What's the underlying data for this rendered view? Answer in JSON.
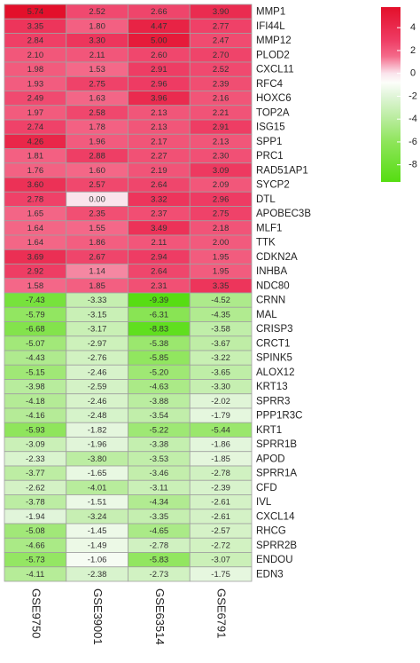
{
  "chart_data": {
    "type": "heatmap",
    "rows": [
      "MMP1",
      "IFI44L",
      "MMP12",
      "PLOD2",
      "CXCL11",
      "RFC4",
      "HOXC6",
      "TOP2A",
      "ISG15",
      "SPP1",
      "PRC1",
      "RAD51AP1",
      "SYCP2",
      "DTL",
      "APOBEC3B",
      "MLF1",
      "TTK",
      "CDKN2A",
      "INHBA",
      "NDC80",
      "CRNN",
      "MAL",
      "CRISP3",
      "CRCT1",
      "SPINK5",
      "ALOX12",
      "KRT13",
      "SPRR3",
      "PPP1R3C",
      "KRT1",
      "SPRR1B",
      "APOD",
      "SPRR1A",
      "CFD",
      "IVL",
      "CXCL14",
      "RHCG",
      "SPRR2B",
      "ENDOU",
      "EDN3"
    ],
    "columns": [
      "GSE9750",
      "GSE39001",
      "GSE63514",
      "GSE6791"
    ],
    "values": [
      [
        5.74,
        2.52,
        2.66,
        3.9
      ],
      [
        3.35,
        1.8,
        4.47,
        2.77
      ],
      [
        2.84,
        3.3,
        5,
        2.47
      ],
      [
        2.1,
        2.11,
        2.6,
        2.7
      ],
      [
        1.98,
        1.53,
        2.91,
        2.52
      ],
      [
        1.93,
        2.75,
        2.96,
        2.39
      ],
      [
        2.49,
        1.63,
        3.96,
        2.16
      ],
      [
        1.97,
        2.58,
        2.13,
        2.21
      ],
      [
        2.74,
        1.78,
        2.13,
        2.91
      ],
      [
        4.26,
        1.96,
        2.17,
        2.13
      ],
      [
        1.81,
        2.88,
        2.27,
        2.3
      ],
      [
        1.76,
        1.6,
        2.19,
        3.09
      ],
      [
        3.6,
        2.57,
        2.64,
        2.09
      ],
      [
        2.78,
        0,
        3.32,
        2.96
      ],
      [
        1.65,
        2.35,
        2.37,
        2.75
      ],
      [
        1.64,
        1.55,
        3.49,
        2.18
      ],
      [
        1.64,
        1.86,
        2.11,
        2
      ],
      [
        3.69,
        2.67,
        2.94,
        1.95
      ],
      [
        2.92,
        1.14,
        2.64,
        1.95
      ],
      [
        1.58,
        1.85,
        2.31,
        3.35
      ],
      [
        -7.43,
        -3.33,
        -9.39,
        -4.52
      ],
      [
        -5.79,
        -3.15,
        -6.31,
        -4.35
      ],
      [
        -6.68,
        -3.17,
        -8.83,
        -3.58
      ],
      [
        -5.07,
        -2.97,
        -5.38,
        -3.67
      ],
      [
        -4.43,
        -2.76,
        -5.85,
        -3.22
      ],
      [
        -5.15,
        -2.46,
        -5.2,
        -3.65
      ],
      [
        -3.98,
        -2.59,
        -4.63,
        -3.3
      ],
      [
        -4.18,
        -2.46,
        -3.88,
        -2.02
      ],
      [
        -4.16,
        -2.48,
        -3.54,
        -1.79
      ],
      [
        -5.93,
        -1.82,
        -5.22,
        -5.44
      ],
      [
        -3.09,
        -1.96,
        -3.38,
        -1.86
      ],
      [
        -2.33,
        -3.8,
        -3.53,
        -1.85
      ],
      [
        -3.77,
        -1.65,
        -3.46,
        -2.78
      ],
      [
        -2.62,
        -4.01,
        -3.11,
        -2.39
      ],
      [
        -3.78,
        -1.51,
        -4.34,
        -2.61
      ],
      [
        -1.94,
        -3.24,
        -3.35,
        -2.61
      ],
      [
        -5.08,
        -1.45,
        -4.65,
        -2.57
      ],
      [
        -4.66,
        -1.49,
        -2.78,
        -2.72
      ],
      [
        -5.73,
        -1.06,
        -5.83,
        -3.07
      ],
      [
        -4.11,
        -2.38,
        -2.73,
        -1.75
      ]
    ],
    "value_labels": [
      [
        "5.74",
        "2.52",
        "2.66",
        "3.90"
      ],
      [
        "3.35",
        "1.80",
        "4.47",
        "2.77"
      ],
      [
        "2.84",
        "3.30",
        "5.00",
        "2.47"
      ],
      [
        "2.10",
        "2.11",
        "2.60",
        "2.70"
      ],
      [
        "1.98",
        "1.53",
        "2.91",
        "2.52"
      ],
      [
        "1.93",
        "2.75",
        "2.96",
        "2.39"
      ],
      [
        "2.49",
        "1.63",
        "3.96",
        "2.16"
      ],
      [
        "1.97",
        "2.58",
        "2.13",
        "2.21"
      ],
      [
        "2.74",
        "1.78",
        "2.13",
        "2.91"
      ],
      [
        "4.26",
        "1.96",
        "2.17",
        "2.13"
      ],
      [
        "1.81",
        "2.88",
        "2.27",
        "2.30"
      ],
      [
        "1.76",
        "1.60",
        "2.19",
        "3.09"
      ],
      [
        "3.60",
        "2.57",
        "2.64",
        "2.09"
      ],
      [
        "2.78",
        "0.00",
        "3.32",
        "2.96"
      ],
      [
        "1.65",
        "2.35",
        "2.37",
        "2.75"
      ],
      [
        "1.64",
        "1.55",
        "3.49",
        "2.18"
      ],
      [
        "1.64",
        "1.86",
        "2.11",
        "2.00"
      ],
      [
        "3.69",
        "2.67",
        "2.94",
        "1.95"
      ],
      [
        "2.92",
        "1.14",
        "2.64",
        "1.95"
      ],
      [
        "1.58",
        "1.85",
        "2.31",
        "3.35"
      ],
      [
        "-7.43",
        "-3.33",
        "-9.39",
        "-4.52"
      ],
      [
        "-5.79",
        "-3.15",
        "-6.31",
        "-4.35"
      ],
      [
        "-6.68",
        "-3.17",
        "-8.83",
        "-3.58"
      ],
      [
        "-5.07",
        "-2.97",
        "-5.38",
        "-3.67"
      ],
      [
        "-4.43",
        "-2.76",
        "-5.85",
        "-3.22"
      ],
      [
        "-5.15",
        "-2.46",
        "-5.20",
        "-3.65"
      ],
      [
        "-3.98",
        "-2.59",
        "-4.63",
        "-3.30"
      ],
      [
        "-4.18",
        "-2.46",
        "-3.88",
        "-2.02"
      ],
      [
        "-4.16",
        "-2.48",
        "-3.54",
        "-1.79"
      ],
      [
        "-5.93",
        "-1.82",
        "-5.22",
        "-5.44"
      ],
      [
        "-3.09",
        "-1.96",
        "-3.38",
        "-1.86"
      ],
      [
        "-2.33",
        "-3.80",
        "-3.53",
        "-1.85"
      ],
      [
        "-3.77",
        "-1.65",
        "-3.46",
        "-2.78"
      ],
      [
        "-2.62",
        "-4.01",
        "-3.11",
        "-2.39"
      ],
      [
        "-3.78",
        "-1.51",
        "-4.34",
        "-2.61"
      ],
      [
        "-1.94",
        "-3.24",
        "-3.35",
        "-2.61"
      ],
      [
        "-5.08",
        "-1.45",
        "-4.65",
        "-2.57"
      ],
      [
        "-4.66",
        "-1.49",
        "-2.78",
        "-2.72"
      ],
      [
        "-5.73",
        "-1.06",
        "-5.83",
        "-3.07"
      ],
      [
        "-4.11",
        "-2.38",
        "-2.73",
        "-1.75"
      ]
    ],
    "clim": [
      -9.5,
      5.8
    ],
    "cticks": [
      4,
      2,
      0,
      -2,
      -4,
      -6,
      -8
    ]
  }
}
